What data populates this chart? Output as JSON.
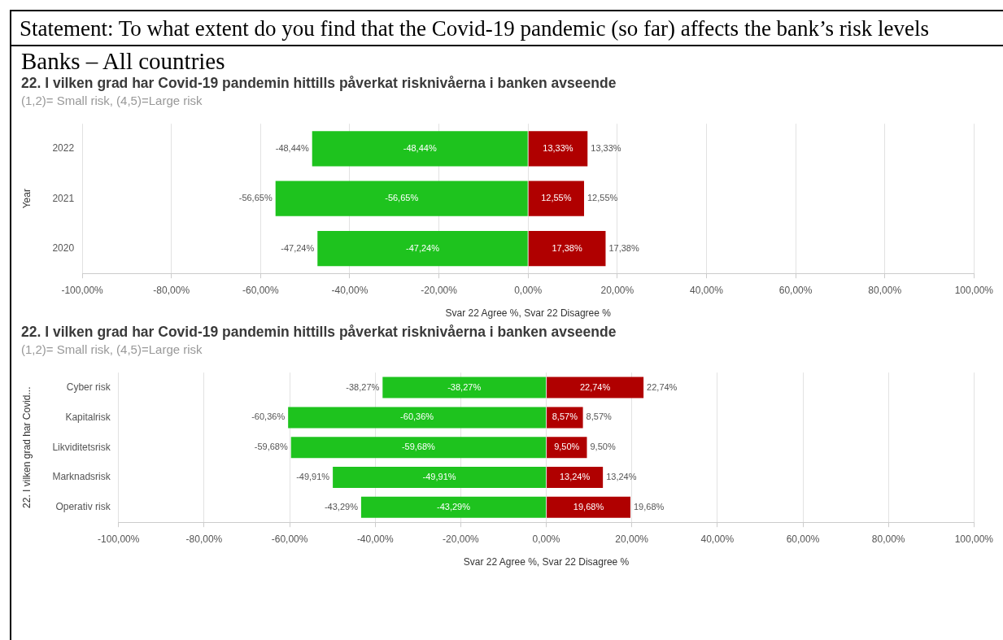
{
  "chart_data": [
    {
      "type": "bar",
      "orientation": "horizontal",
      "stacked": true,
      "title": "22. I vilken grad har Covid-19 pandemin hittills påverkat risknivåerna i banken avseende",
      "subtitle": "(1,2)= Small risk, (4,5)=Large risk",
      "xlabel": "Svar 22 Agree %, Svar 22 Disagree %",
      "ylabel": "Year",
      "annotations": [
        "Statement: To what extent do you find that the Covid-19 pandemic (so far) affects the bank’s risk levels",
        "Banks – All countries"
      ],
      "categories": [
        "2022",
        "2021",
        "2020"
      ],
      "series": [
        {
          "color": "#1ec31e",
          "values": [
            -48.44,
            -56.65,
            -47.24
          ],
          "value_labels": [
            "-48,44%",
            "-56,65%",
            "-47,24%"
          ]
        },
        {
          "color": "#b00000",
          "values": [
            13.33,
            12.55,
            17.38
          ],
          "value_labels": [
            "13,33%",
            "12,55%",
            "17,38%"
          ]
        }
      ],
      "xlim": [
        -100,
        100
      ],
      "xticks": [
        {
          "value": -100,
          "label": "-100,00%"
        },
        {
          "value": -80,
          "label": "-80,00%"
        },
        {
          "value": -60,
          "label": "-60,00%"
        },
        {
          "value": -40,
          "label": "-40,00%"
        },
        {
          "value": -20,
          "label": "-20,00%"
        },
        {
          "value": 0,
          "label": "0,00%"
        },
        {
          "value": 20,
          "label": "20,00%"
        },
        {
          "value": 40,
          "label": "40,00%"
        },
        {
          "value": 60,
          "label": "60,00%"
        },
        {
          "value": 80,
          "label": "80,00%"
        },
        {
          "value": 100,
          "label": "100,00%"
        }
      ],
      "grid": "x",
      "legend": false
    },
    {
      "type": "bar",
      "orientation": "horizontal",
      "stacked": true,
      "title": "22. I vilken grad har Covid-19 pandemin hittills påverkat risknivåerna i banken avseende",
      "subtitle": "(1,2)= Small risk, (4,5)=Large risk",
      "xlabel": "Svar 22 Agree %, Svar 22 Disagree %",
      "ylabel": "22. I vilken grad har Covid...",
      "categories": [
        "Cyber risk",
        "Kapitalrisk",
        "Likviditetsrisk",
        "Marknadsrisk",
        "Operativ risk"
      ],
      "series": [
        {
          "color": "#1ec31e",
          "values": [
            -38.27,
            -60.36,
            -59.68,
            -49.91,
            -43.29
          ],
          "value_labels": [
            "-38,27%",
            "-60,36%",
            "-59,68%",
            "-49,91%",
            "-43,29%"
          ]
        },
        {
          "color": "#b00000",
          "values": [
            22.74,
            8.57,
            9.5,
            13.24,
            19.68
          ],
          "value_labels": [
            "22,74%",
            "8,57%",
            "9,50%",
            "13,24%",
            "19,68%"
          ]
        }
      ],
      "xlim": [
        -100,
        100
      ],
      "xticks": [
        {
          "value": -100,
          "label": "-100,00%"
        },
        {
          "value": -80,
          "label": "-80,00%"
        },
        {
          "value": -60,
          "label": "-60,00%"
        },
        {
          "value": -40,
          "label": "-40,00%"
        },
        {
          "value": -20,
          "label": "-20,00%"
        },
        {
          "value": 0,
          "label": "0,00%"
        },
        {
          "value": 20,
          "label": "20,00%"
        },
        {
          "value": 40,
          "label": "40,00%"
        },
        {
          "value": 60,
          "label": "60,00%"
        },
        {
          "value": 80,
          "label": "80,00%"
        },
        {
          "value": 100,
          "label": "100,00%"
        }
      ],
      "grid": "x",
      "legend": false
    }
  ]
}
